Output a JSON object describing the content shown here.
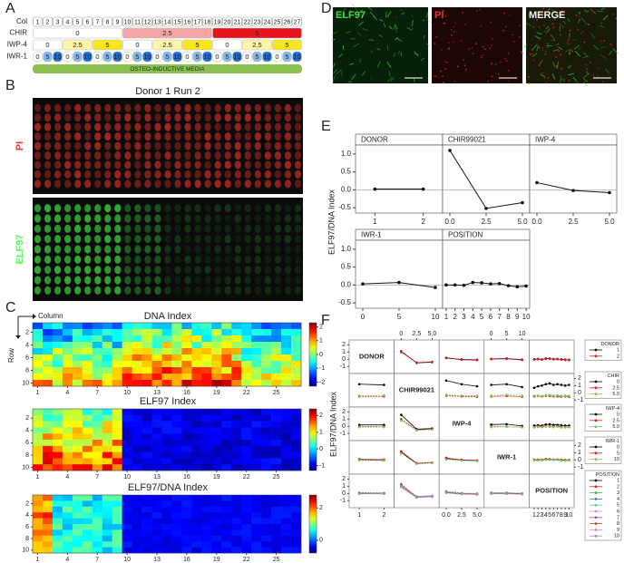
{
  "panel_labels": [
    "A",
    "B",
    "C",
    "D",
    "E",
    "F"
  ],
  "a": {
    "col_label": "Col",
    "columns": [
      1,
      2,
      3,
      4,
      5,
      6,
      7,
      8,
      9,
      10,
      11,
      12,
      13,
      14,
      15,
      16,
      17,
      18,
      19,
      20,
      21,
      22,
      23,
      24,
      25,
      26,
      27
    ],
    "rows": [
      {
        "name": "CHIR",
        "cells": [
          "0",
          "2.5",
          "5"
        ],
        "colors": [
          "#ffffff",
          "#f4a6a6",
          "#e8141b"
        ]
      },
      {
        "name": "IWP-4",
        "cells": [
          "0",
          "2.5",
          "5",
          "0",
          "2.5",
          "5",
          "0",
          "2.5",
          "5"
        ],
        "colors": [
          "#ffffff",
          "#fdf6a8",
          "#f8e71c"
        ]
      },
      {
        "name": "IWR-1",
        "cells": [
          "0",
          "5",
          "10",
          "0",
          "5",
          "10",
          "0",
          "5",
          "10",
          "0",
          "5",
          "10",
          "0",
          "5",
          "10",
          "0",
          "5",
          "10",
          "0",
          "5",
          "10",
          "0",
          "5",
          "10",
          "0",
          "5",
          "10"
        ],
        "colors": [
          "#ffffff",
          "#86b9ec",
          "#1f6fd1"
        ]
      }
    ],
    "media": "OSTEO-INDUCTIVE MEDIA"
  },
  "b": {
    "title": "Donor 1 Run 2",
    "channels": [
      "PI",
      "ELF97"
    ]
  },
  "c": {
    "column_label": "Column",
    "row_label": "Row",
    "xticks": [
      1,
      4,
      7,
      10,
      13,
      16,
      19,
      22,
      25
    ],
    "yticks": [
      2,
      4,
      6,
      8,
      10
    ],
    "maps": [
      {
        "title": "DNA Index",
        "clim": [
          -2.3,
          2.3
        ],
        "cbar_ticks": [
          2,
          1,
          0,
          -1,
          -2
        ]
      },
      {
        "title": "ELF97 Index",
        "clim": [
          -1.3,
          2.4
        ],
        "cbar_ticks": [
          2,
          1,
          0,
          -1
        ]
      },
      {
        "title": "ELF97/DNA Index",
        "clim": [
          -0.8,
          2.8
        ],
        "cbar_ticks": [
          2,
          0
        ]
      }
    ]
  },
  "d": {
    "channels": [
      "ELF97",
      "PI",
      "MERGE"
    ]
  },
  "e": {
    "type": "line",
    "ylabel": "ELF97/DNA Index",
    "ylim": [
      -0.65,
      1.25
    ],
    "yticks": [
      {
        "value": 1,
        "label": "1.0"
      },
      {
        "value": 0.5,
        "label": "0.5"
      },
      {
        "value": 0,
        "label": "0.0"
      },
      {
        "value": -0.5,
        "label": "-0.5"
      }
    ],
    "facets": [
      {
        "name": "DONOR",
        "x": [
          1,
          2
        ],
        "xlim": [
          0.6,
          2.4
        ],
        "xticks": [
          1,
          2
        ],
        "values": [
          0.02,
          0.02
        ]
      },
      {
        "name": "CHIR99021",
        "x": [
          0,
          2.5,
          5
        ],
        "xlim": [
          -0.5,
          5.5
        ],
        "xticks": [
          {
            "value": 0,
            "label": "0.0"
          },
          2.5,
          {
            "value": 5,
            "label": "5.0"
          }
        ],
        "values": [
          1.1,
          -0.52,
          -0.36
        ]
      },
      {
        "name": "IWP-4",
        "x": [
          0,
          2.5,
          5
        ],
        "xlim": [
          -0.5,
          5.5
        ],
        "xticks": [
          {
            "value": 0,
            "label": "0.0"
          },
          2.5,
          {
            "value": 5,
            "label": "5.0"
          }
        ],
        "values": [
          0.2,
          -0.02,
          -0.08
        ]
      },
      {
        "name": "IWR-1",
        "x": [
          0,
          5,
          10
        ],
        "xlim": [
          -1,
          11
        ],
        "xticks": [
          0,
          5,
          10
        ],
        "values": [
          0.03,
          0.07,
          -0.07
        ]
      },
      {
        "name": "POSITION",
        "x": [
          1,
          2,
          3,
          4,
          5,
          6,
          7,
          8,
          9,
          10
        ],
        "xlim": [
          0.6,
          10.4
        ],
        "xticks": [
          1,
          2,
          3,
          4,
          5,
          6,
          7,
          8,
          9,
          10
        ],
        "values": [
          0,
          0,
          -0.01,
          0.07,
          0.06,
          0.03,
          0.04,
          -0.02,
          -0.05,
          -0.03
        ]
      }
    ]
  },
  "f": {
    "ylabel": "ELF97/DNA Index",
    "ylim": [
      -1.6,
      2.3
    ],
    "yticks": [
      2,
      1,
      0,
      -1
    ],
    "variables": [
      {
        "name": "DONOR",
        "legend": "DONOR",
        "levels": [
          "1",
          "2"
        ],
        "colors": [
          "#000000",
          "#e41a1c"
        ],
        "x": [
          1,
          2
        ],
        "xlim": [
          0.7,
          2.3
        ],
        "xticks": [
          1,
          2
        ]
      },
      {
        "name": "CHIR99021",
        "legend": "CHIR",
        "levels": [
          "0",
          "2.5",
          "5.0"
        ],
        "colors": [
          "#000000",
          "#e41a1c",
          "#7cc55a"
        ],
        "x": [
          0,
          2.5,
          5
        ],
        "xlim": [
          -0.7,
          5.7
        ],
        "xticks": [
          0,
          2.5,
          {
            "value": 5,
            "label": "5.0"
          }
        ]
      },
      {
        "name": "IWP-4",
        "legend": "IWP-4",
        "levels": [
          "0",
          "2.5",
          "5.0"
        ],
        "colors": [
          "#000000",
          "#e41a1c",
          "#7cc55a"
        ],
        "x": [
          0,
          2.5,
          5
        ],
        "xlim": [
          -0.7,
          5.7
        ],
        "xticks": [
          {
            "value": 0,
            "label": "0.0"
          },
          2.5,
          {
            "value": 5,
            "label": "5.0"
          }
        ]
      },
      {
        "name": "IWR-1",
        "legend": "IWR-1",
        "levels": [
          "0",
          "5",
          "10"
        ],
        "colors": [
          "#000000",
          "#e41a1c",
          "#7cc55a"
        ],
        "x": [
          0,
          5,
          10
        ],
        "xlim": [
          -1.4,
          11.4
        ],
        "xticks": [
          0,
          5,
          10
        ]
      },
      {
        "name": "POSITION",
        "legend": "POSITION",
        "levels": [
          "1",
          "2",
          "3",
          "4",
          "5",
          "6",
          "7",
          "8",
          "9",
          "10"
        ],
        "colors": [
          "#000000",
          "#e41a1c",
          "#4daf4a",
          "#377eb8",
          "#66c2a5",
          "#e78ac3",
          "#984ea3",
          "#a65628",
          "#f781bf",
          "#999999"
        ],
        "x": [
          1,
          2,
          3,
          4,
          5,
          6,
          7,
          8,
          9,
          10
        ],
        "xlim": [
          0.4,
          10.6
        ],
        "xticks": [
          1,
          2,
          3,
          4,
          5,
          6,
          7,
          8,
          9,
          10
        ]
      }
    ],
    "interaction": [
      [
        null,
        [
          [
            1.1,
            -0.5,
            -0.4
          ],
          [
            1.0,
            -0.45,
            -0.35
          ]
        ],
        [
          [
            0.2,
            -0.05,
            -0.1
          ],
          [
            0.15,
            0.0,
            -0.05
          ]
        ],
        [
          [
            0.05,
            0.1,
            -0.05
          ],
          [
            0.0,
            0.05,
            -0.1
          ]
        ],
        [
          [
            0.0,
            0.05,
            -0.05,
            0.1,
            0.1,
            0.0,
            0.05,
            -0.05,
            -0.05,
            -0.1
          ],
          [
            -0.05,
            0.0,
            0.0,
            0.05,
            0.1,
            0.05,
            0.0,
            0.0,
            -0.1,
            -0.05
          ]
        ]
      ],
      [
        [
          [
            1.2,
            1.1
          ],
          [
            -0.5,
            -0.5
          ],
          [
            -0.4,
            -0.35
          ]
        ],
        null,
        [
          [
            1.7,
            1.2,
            0.9
          ],
          [
            -0.4,
            -0.5,
            -0.55
          ],
          [
            -0.3,
            -0.4,
            -0.4
          ]
        ],
        [
          [
            1.1,
            1.2,
            0.8
          ],
          [
            -0.5,
            -0.45,
            -0.55
          ],
          [
            -0.4,
            -0.3,
            -0.4
          ]
        ],
        [
          [
            0.7,
            0.9,
            1.0,
            1.2,
            1.3,
            1.1,
            1.2,
            1.1,
            1.0,
            1.1
          ],
          [
            -0.5,
            -0.45,
            -0.5,
            -0.4,
            -0.45,
            -0.5,
            -0.5,
            -0.55,
            -0.5,
            -0.55
          ],
          [
            -0.4,
            -0.4,
            -0.45,
            -0.3,
            -0.35,
            -0.4,
            -0.35,
            -0.45,
            -0.4,
            -0.45
          ]
        ]
      ],
      [
        [
          [
            0.2,
            0.2
          ],
          [
            0.0,
            -0.05
          ],
          [
            -0.1,
            -0.1
          ]
        ],
        [
          [
            1.6,
            -0.4,
            -0.3
          ],
          [
            1.0,
            -0.5,
            -0.4
          ],
          [
            0.8,
            -0.55,
            -0.45
          ]
        ],
        null,
        [
          [
            0.25,
            0.3,
            0.05
          ],
          [
            0.0,
            -0.05,
            -0.1
          ],
          [
            -0.1,
            -0.05,
            -0.15
          ]
        ],
        [
          [
            0.1,
            0.15,
            0.1,
            0.25,
            0.3,
            0.2,
            0.2,
            0.15,
            0.1,
            0.1
          ],
          [
            -0.1,
            0.0,
            -0.05,
            0.05,
            0.0,
            0.0,
            0.0,
            -0.05,
            -0.1,
            -0.1
          ],
          [
            -0.15,
            -0.1,
            -0.1,
            -0.05,
            -0.05,
            -0.1,
            -0.05,
            -0.15,
            -0.15,
            -0.1
          ]
        ]
      ],
      [
        [
          [
            0.05,
            0.0
          ],
          [
            0.1,
            0.05
          ],
          [
            -0.05,
            -0.1
          ]
        ],
        [
          [
            1.1,
            -0.5,
            -0.4
          ],
          [
            1.2,
            -0.45,
            -0.35
          ],
          [
            0.9,
            -0.55,
            -0.4
          ]
        ],
        [
          [
            0.2,
            0.0,
            -0.1
          ],
          [
            0.3,
            -0.05,
            -0.05
          ],
          [
            0.05,
            -0.1,
            -0.15
          ]
        ],
        null,
        [
          [
            0.0,
            0.0,
            0.0,
            0.1,
            0.05,
            0.0,
            0.05,
            0.0,
            -0.05,
            0.0
          ],
          [
            0.05,
            0.05,
            0.0,
            0.1,
            0.1,
            0.05,
            0.05,
            0.0,
            0.0,
            -0.05
          ],
          [
            -0.05,
            -0.05,
            -0.05,
            0.0,
            0.0,
            0.0,
            0.0,
            -0.1,
            -0.1,
            -0.05
          ]
        ]
      ],
      [
        [
          [
            0.0,
            0.0
          ],
          [
            0.05,
            0.0
          ],
          [
            -0.05,
            0.0
          ],
          [
            0.1,
            0.05
          ],
          [
            0.1,
            0.05
          ],
          [
            0.0,
            0.05
          ],
          [
            0.05,
            0.05
          ],
          [
            0.0,
            -0.05
          ],
          [
            -0.05,
            -0.05
          ],
          [
            -0.05,
            0.0
          ]
        ],
        [
          [
            0.9,
            -0.5,
            -0.4
          ],
          [
            1.0,
            -0.55,
            -0.4
          ],
          [
            1.1,
            -0.5,
            -0.45
          ],
          [
            1.3,
            -0.45,
            -0.35
          ],
          [
            1.2,
            -0.4,
            -0.3
          ],
          [
            1.1,
            -0.5,
            -0.35
          ],
          [
            1.2,
            -0.5,
            -0.4
          ],
          [
            1.0,
            -0.55,
            -0.45
          ],
          [
            0.9,
            -0.6,
            -0.45
          ],
          [
            1.0,
            -0.55,
            -0.4
          ]
        ],
        [
          [
            0.1,
            -0.05,
            -0.1
          ],
          [
            0.2,
            0.0,
            -0.1
          ],
          [
            0.15,
            -0.05,
            -0.1
          ],
          [
            0.3,
            0.05,
            -0.05
          ],
          [
            0.25,
            0.05,
            0.0
          ],
          [
            0.2,
            0.0,
            -0.05
          ],
          [
            0.2,
            0.0,
            -0.05
          ],
          [
            0.15,
            -0.05,
            -0.15
          ],
          [
            0.1,
            -0.1,
            -0.15
          ],
          [
            0.1,
            -0.05,
            -0.1
          ]
        ],
        [
          [
            0.0,
            0.0,
            -0.05
          ],
          [
            0.05,
            0.0,
            -0.05
          ],
          [
            0.0,
            -0.05,
            -0.05
          ],
          [
            0.1,
            0.1,
            0.0
          ],
          [
            0.05,
            0.1,
            0.0
          ],
          [
            0.0,
            0.05,
            0.0
          ],
          [
            0.05,
            0.05,
            0.0
          ],
          [
            0.0,
            0.0,
            -0.1
          ],
          [
            -0.05,
            0.0,
            -0.1
          ],
          [
            0.0,
            -0.05,
            -0.05
          ]
        ],
        null
      ]
    ]
  }
}
